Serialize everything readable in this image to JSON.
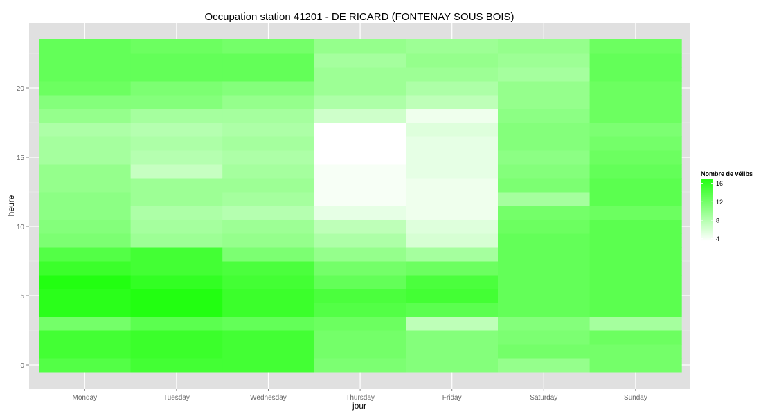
{
  "chart_data": {
    "type": "heatmap",
    "title": "Occupation station 41201 - DE RICARD (FONTENAY SOUS BOIS)",
    "xlabel": "jour",
    "ylabel": "heure",
    "x_categories": [
      "Monday",
      "Tuesday",
      "Wednesday",
      "Thursday",
      "Friday",
      "Saturday",
      "Sunday"
    ],
    "y_hours": [
      0,
      1,
      2,
      3,
      4,
      5,
      6,
      7,
      8,
      9,
      10,
      11,
      12,
      13,
      14,
      15,
      16,
      17,
      18,
      19,
      20,
      21,
      22,
      23
    ],
    "y_ticks": [
      0,
      5,
      10,
      15,
      20
    ],
    "ylim": [
      -0.5,
      23.5
    ],
    "legend": {
      "title": "Nombre de vélibs",
      "ticks": [
        4,
        8,
        12,
        16
      ],
      "min": 3.5,
      "max": 17,
      "low_color": "#ffffff",
      "high_color": "#22ff11",
      "placement": "right"
    },
    "panel_background": "#e0e0e0",
    "grid": true,
    "values_by_day": {
      "Monday": [
        14.0,
        15.0,
        15.0,
        12.0,
        16.5,
        16.5,
        17.0,
        15.5,
        14.0,
        11.5,
        11.0,
        10.5,
        10.5,
        10.0,
        10.0,
        9.0,
        9.0,
        8.5,
        10.0,
        11.0,
        12.5,
        13.0,
        13.0,
        13.0
      ],
      "Tuesday": [
        15.0,
        15.5,
        15.5,
        13.5,
        17.0,
        17.0,
        16.0,
        15.0,
        15.0,
        9.5,
        9.0,
        8.5,
        9.5,
        9.5,
        7.0,
        8.0,
        8.5,
        8.0,
        9.0,
        11.0,
        11.5,
        13.0,
        13.0,
        12.5
      ],
      "Wednesday": [
        15.0,
        15.0,
        15.0,
        13.0,
        15.5,
        15.5,
        15.0,
        14.5,
        11.5,
        10.0,
        9.5,
        8.0,
        9.0,
        9.5,
        9.0,
        8.5,
        9.0,
        8.5,
        9.0,
        10.0,
        11.0,
        13.0,
        13.0,
        12.0
      ],
      "Thursday": [
        11.5,
        12.0,
        12.0,
        12.5,
        14.0,
        14.5,
        13.0,
        12.0,
        10.0,
        8.5,
        7.5,
        5.0,
        4.0,
        4.0,
        4.0,
        3.5,
        3.5,
        3.5,
        6.5,
        8.5,
        9.5,
        9.5,
        9.0,
        10.0
      ],
      "Friday": [
        11.0,
        11.0,
        11.0,
        7.5,
        13.5,
        15.0,
        14.5,
        12.5,
        9.0,
        6.0,
        5.5,
        4.5,
        4.5,
        4.5,
        5.0,
        5.0,
        5.0,
        5.5,
        4.5,
        7.5,
        8.5,
        9.5,
        10.0,
        9.5
      ],
      "Saturday": [
        10.0,
        12.0,
        11.5,
        11.0,
        13.0,
        13.0,
        13.0,
        13.0,
        13.0,
        13.0,
        12.5,
        12.0,
        9.0,
        11.5,
        11.0,
        10.5,
        11.0,
        11.0,
        10.5,
        10.0,
        10.0,
        9.0,
        9.5,
        10.0
      ],
      "Sunday": [
        12.0,
        12.0,
        12.5,
        9.0,
        13.5,
        13.5,
        13.5,
        13.5,
        13.5,
        13.5,
        13.5,
        12.5,
        13.5,
        13.5,
        13.0,
        12.5,
        12.0,
        11.5,
        12.5,
        12.5,
        12.5,
        13.0,
        13.0,
        12.5
      ]
    }
  }
}
